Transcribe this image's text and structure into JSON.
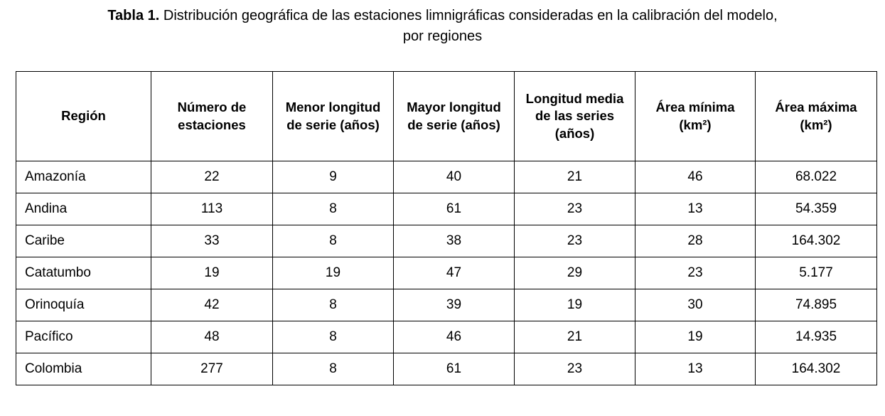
{
  "caption": {
    "label": "Tabla 1.",
    "line1": "Distribución geográfica de las estaciones limnigráficas consideradas en la calibración del modelo,",
    "line2": "por regiones"
  },
  "table": {
    "columns": [
      "Región",
      "Número de estaciones",
      "Menor longitud de serie (años)",
      "Mayor longitud de serie (años)",
      "Longitud media de las series (años)",
      "Área mínima (km²)",
      "Área máxima (km²)"
    ],
    "rows": [
      {
        "cells": [
          "Amazonía",
          "22",
          "9",
          "40",
          "21",
          "46",
          "68.022"
        ]
      },
      {
        "cells": [
          "Andina",
          "113",
          "8",
          "61",
          "23",
          "13",
          "54.359"
        ]
      },
      {
        "cells": [
          "Caribe",
          "33",
          "8",
          "38",
          "23",
          "28",
          "164.302"
        ]
      },
      {
        "cells": [
          "Catatumbo",
          "19",
          "19",
          "47",
          "29",
          "23",
          "5.177"
        ]
      },
      {
        "cells": [
          "Orinoquía",
          "42",
          "8",
          "39",
          "19",
          "30",
          "74.895"
        ]
      },
      {
        "cells": [
          "Pacífico",
          "48",
          "8",
          "46",
          "21",
          "19",
          "14.935"
        ]
      },
      {
        "cells": [
          "Colombia",
          "277",
          "8",
          "61",
          "23",
          "13",
          "164.302"
        ]
      }
    ]
  },
  "chart_data": {
    "type": "table",
    "title": "Tabla 1. Distribución geográfica de las estaciones limnigráficas consideradas en la calibración del modelo, por regiones",
    "columns": [
      "Región",
      "Número de estaciones",
      "Menor longitud de serie (años)",
      "Mayor longitud de serie (años)",
      "Longitud media de las series (años)",
      "Área mínima (km²)",
      "Área máxima (km²)"
    ],
    "rows": [
      [
        "Amazonía",
        22,
        9,
        40,
        21,
        46,
        "68.022"
      ],
      [
        "Andina",
        113,
        8,
        61,
        23,
        13,
        "54.359"
      ],
      [
        "Caribe",
        33,
        8,
        38,
        23,
        28,
        "164.302"
      ],
      [
        "Catatumbo",
        19,
        19,
        47,
        29,
        23,
        "5.177"
      ],
      [
        "Orinoquía",
        42,
        8,
        39,
        19,
        30,
        "74.895"
      ],
      [
        "Pacífico",
        48,
        8,
        46,
        21,
        19,
        "14.935"
      ],
      [
        "Colombia",
        277,
        8,
        61,
        23,
        13,
        "164.302"
      ]
    ]
  }
}
